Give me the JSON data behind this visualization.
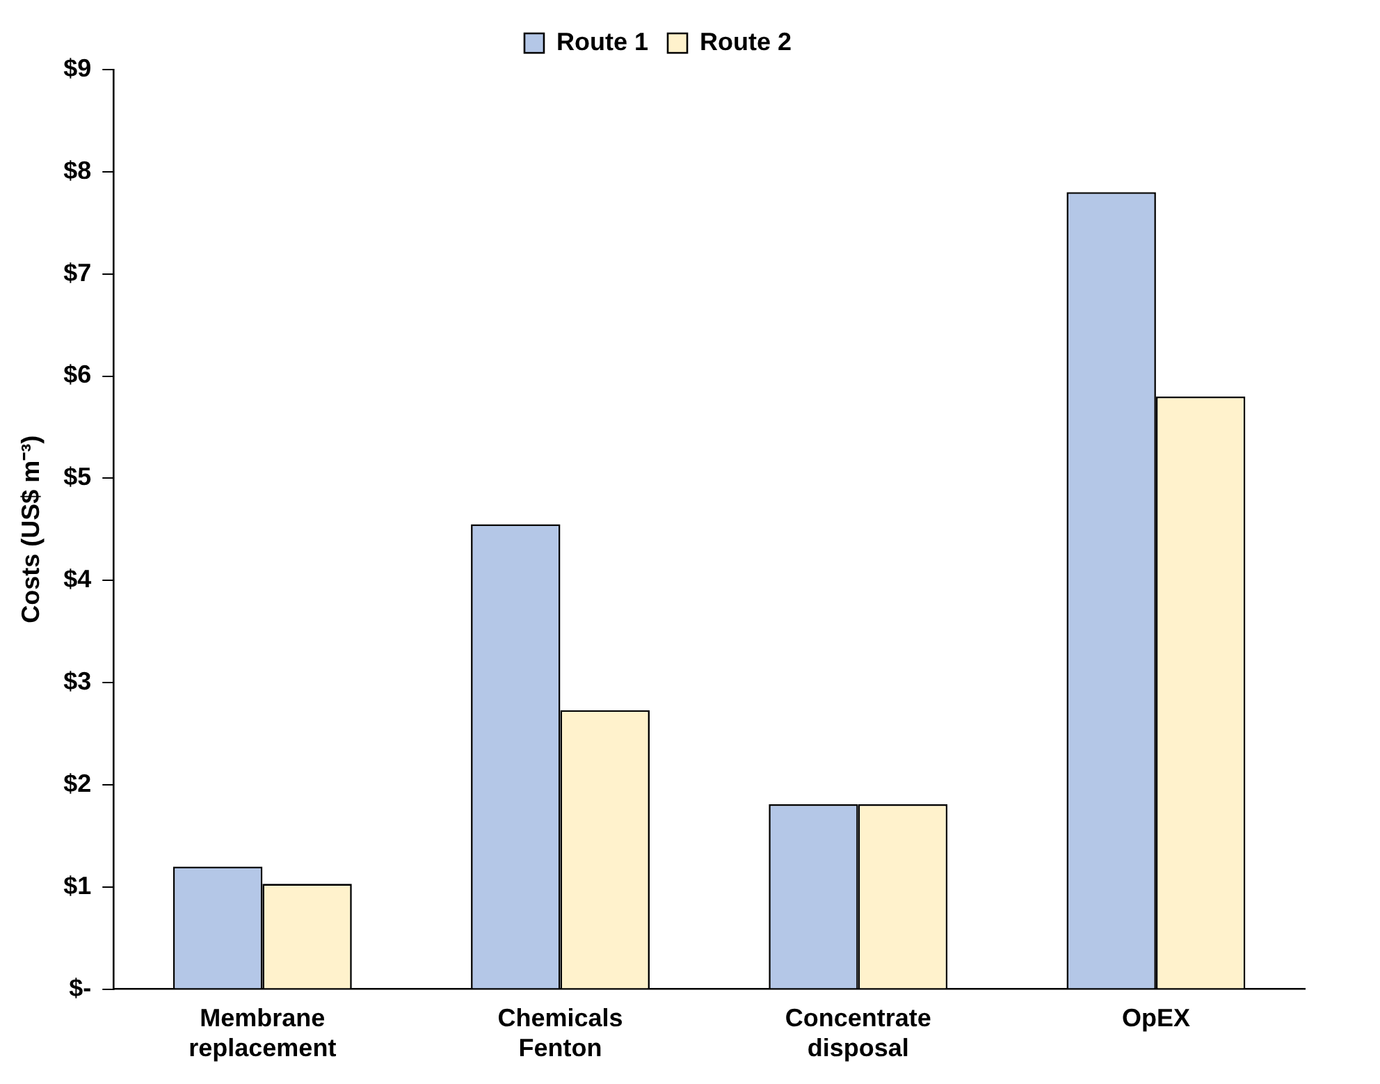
{
  "chart_data": {
    "type": "bar",
    "categories": [
      "Membrane replacement",
      "Chemicals Fenton",
      "Concentrate disposal",
      "OpEX"
    ],
    "ylabel": "Costs (US$ m⁻³)",
    "series": [
      {
        "name": "Route 1",
        "color": "#b4c7e7",
        "values": [
          1.2,
          4.55,
          1.81,
          7.8
        ]
      },
      {
        "name": "Route 2",
        "color": "#fff2cc",
        "values": [
          1.03,
          2.73,
          1.81,
          5.8
        ]
      }
    ],
    "ylim": [
      0,
      9
    ],
    "yticks": [
      {
        "value": 0,
        "label": "$-"
      },
      {
        "value": 1,
        "label": "$1"
      },
      {
        "value": 2,
        "label": "$2"
      },
      {
        "value": 3,
        "label": "$3"
      },
      {
        "value": 4,
        "label": "$4"
      },
      {
        "value": 5,
        "label": "$5"
      },
      {
        "value": 6,
        "label": "$6"
      },
      {
        "value": 7,
        "label": "$7"
      },
      {
        "value": 8,
        "label": "$8"
      },
      {
        "value": 9,
        "label": "$9"
      }
    ],
    "grid": false,
    "legend": "top"
  }
}
